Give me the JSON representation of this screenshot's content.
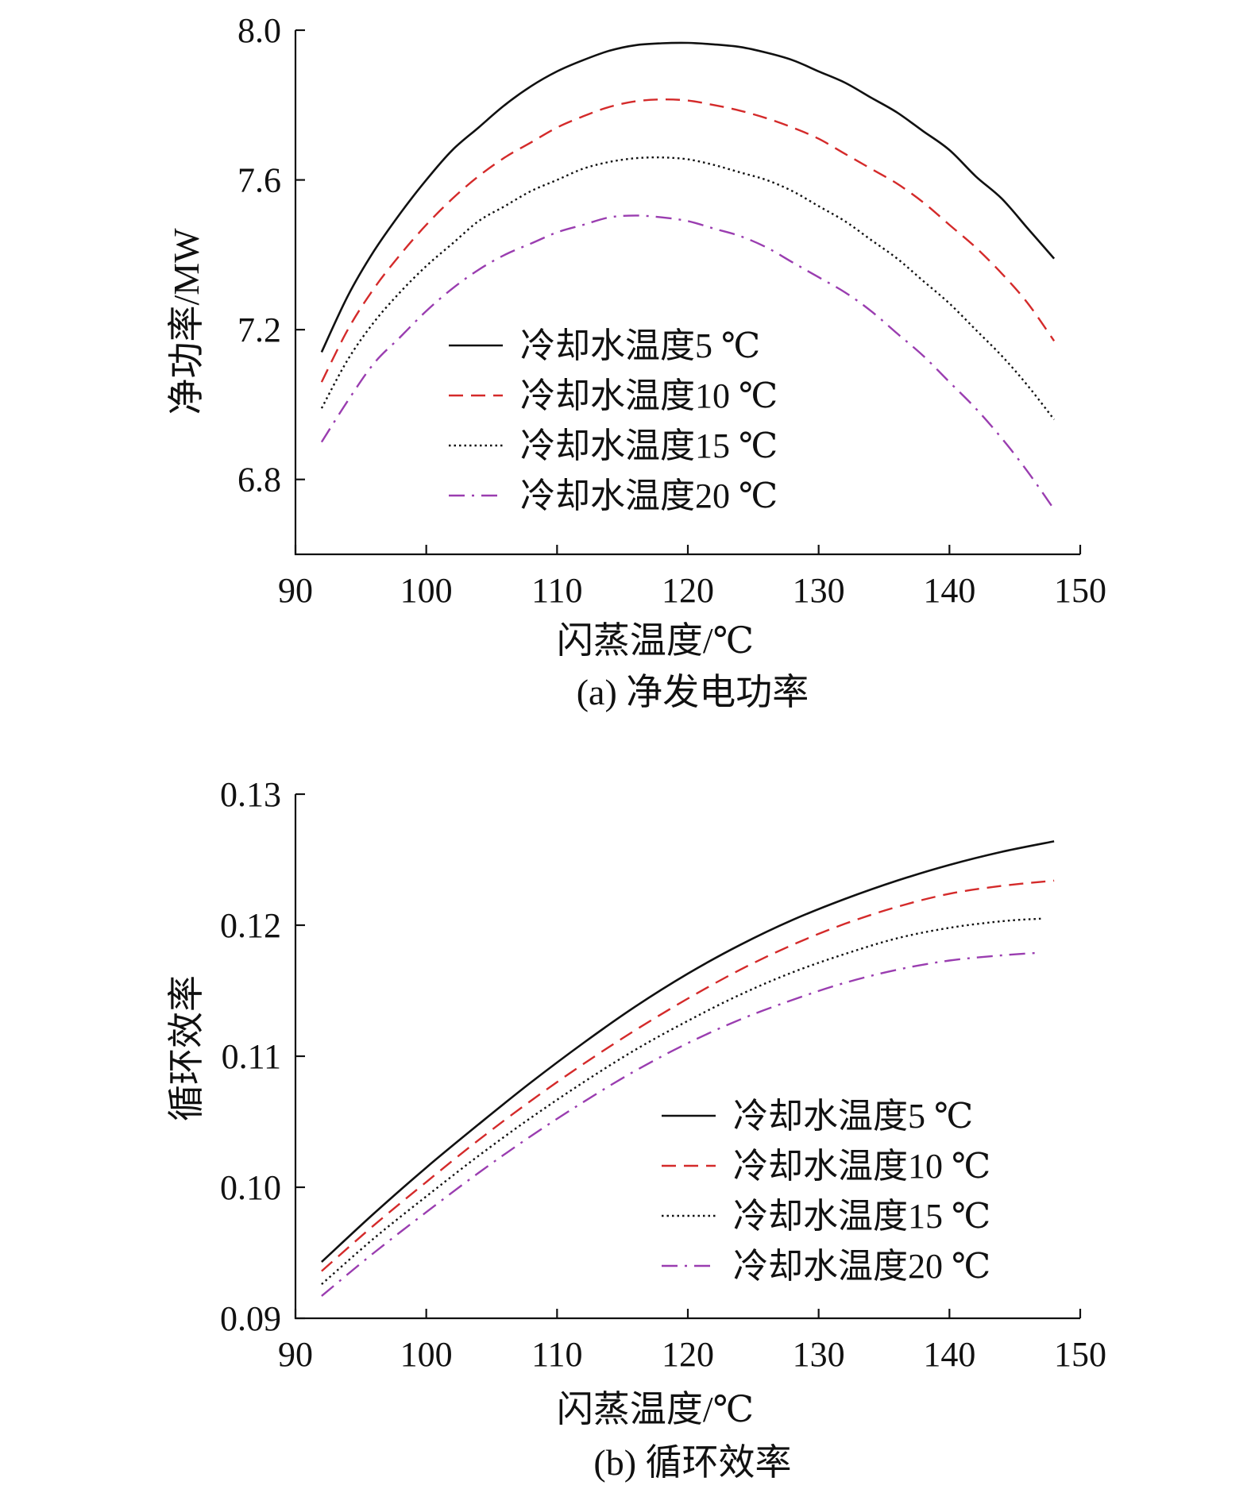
{
  "chart_data": [
    {
      "type": "line",
      "caption": "(a) 净发电功率",
      "xlabel": "闪蒸温度/℃",
      "ylabel": "净功率/MW",
      "xlim": [
        90,
        150
      ],
      "ylim": [
        6.6,
        8.0
      ],
      "xticks": [
        "90",
        "100",
        "110",
        "120",
        "130",
        "140",
        "150"
      ],
      "yticks": [
        {
          "value": 6.8,
          "label": "6.8"
        },
        {
          "value": 7.2,
          "label": "7.2"
        },
        {
          "value": 7.6,
          "label": "7.6"
        },
        {
          "value": 8.0,
          "label": "8.0"
        }
      ],
      "legend_position": "center",
      "series": [
        {
          "name": "冷却水温度5 ℃",
          "color": "#111111",
          "style": "solid",
          "x": [
            92,
            94,
            96,
            98,
            100,
            102,
            104,
            106,
            108,
            110,
            112,
            114,
            116,
            118,
            120,
            122,
            124,
            126,
            128,
            130,
            132,
            134,
            136,
            138,
            140,
            142,
            144,
            146,
            148
          ],
          "y": [
            7.14,
            7.29,
            7.41,
            7.51,
            7.6,
            7.68,
            7.74,
            7.8,
            7.85,
            7.89,
            7.92,
            7.945,
            7.96,
            7.965,
            7.966,
            7.962,
            7.955,
            7.94,
            7.92,
            7.89,
            7.86,
            7.82,
            7.78,
            7.73,
            7.68,
            7.61,
            7.55,
            7.47,
            7.39
          ]
        },
        {
          "name": "冷却水温度10 ℃",
          "color": "#d42a2a",
          "style": "dashed",
          "x": [
            92,
            94,
            96,
            98,
            100,
            102,
            104,
            106,
            108,
            110,
            112,
            114,
            116,
            118,
            120,
            122,
            124,
            126,
            128,
            130,
            132,
            134,
            136,
            138,
            140,
            142,
            144,
            146,
            148
          ],
          "y": [
            7.06,
            7.2,
            7.31,
            7.4,
            7.48,
            7.55,
            7.61,
            7.66,
            7.7,
            7.74,
            7.77,
            7.795,
            7.81,
            7.815,
            7.812,
            7.8,
            7.785,
            7.765,
            7.74,
            7.71,
            7.67,
            7.63,
            7.59,
            7.54,
            7.48,
            7.42,
            7.35,
            7.27,
            7.17
          ]
        },
        {
          "name": "冷却水温度15 ℃",
          "color": "#111111",
          "style": "dotted",
          "x": [
            92,
            94,
            96,
            98,
            100,
            102,
            104,
            106,
            108,
            110,
            112,
            114,
            116,
            118,
            120,
            122,
            124,
            126,
            128,
            130,
            132,
            134,
            136,
            138,
            140,
            142,
            144,
            146,
            148
          ],
          "y": [
            6.99,
            7.12,
            7.22,
            7.3,
            7.37,
            7.43,
            7.49,
            7.53,
            7.57,
            7.6,
            7.63,
            7.648,
            7.658,
            7.66,
            7.655,
            7.64,
            7.62,
            7.6,
            7.57,
            7.53,
            7.49,
            7.44,
            7.39,
            7.33,
            7.27,
            7.2,
            7.13,
            7.05,
            6.96
          ]
        },
        {
          "name": "冷却水温度20 ℃",
          "color": "#9a3db0",
          "style": "dashdot",
          "x": [
            92,
            94,
            96,
            98,
            100,
            102,
            104,
            106,
            108,
            110,
            112,
            114,
            116,
            118,
            120,
            122,
            124,
            126,
            128,
            130,
            132,
            134,
            136,
            138,
            140,
            142,
            144,
            146,
            148
          ],
          "y": [
            6.9,
            7.01,
            7.11,
            7.18,
            7.25,
            7.31,
            7.36,
            7.4,
            7.43,
            7.46,
            7.48,
            7.5,
            7.505,
            7.5,
            7.49,
            7.47,
            7.45,
            7.42,
            7.38,
            7.34,
            7.3,
            7.25,
            7.19,
            7.13,
            7.06,
            6.99,
            6.91,
            6.82,
            6.72
          ]
        }
      ]
    },
    {
      "type": "line",
      "caption": "(b) 循环效率",
      "xlabel": "闪蒸温度/℃",
      "ylabel": "循环效率",
      "xlim": [
        90,
        150
      ],
      "ylim": [
        0.09,
        0.13
      ],
      "xticks": [
        "90",
        "100",
        "110",
        "120",
        "130",
        "140",
        "150"
      ],
      "yticks": [
        {
          "value": 0.09,
          "label": "0.09"
        },
        {
          "value": 0.1,
          "label": "0.10"
        },
        {
          "value": 0.11,
          "label": "0.11"
        },
        {
          "value": 0.12,
          "label": "0.12"
        },
        {
          "value": 0.13,
          "label": "0.13"
        }
      ],
      "legend_position": "bottom-right",
      "series": [
        {
          "name": "冷却水温度5 ℃",
          "color": "#111111",
          "style": "solid",
          "x": [
            92,
            96,
            100,
            104,
            108,
            112,
            116,
            120,
            124,
            128,
            132,
            136,
            140,
            144,
            148
          ],
          "y": [
            0.0943,
            0.098,
            0.1015,
            0.1048,
            0.108,
            0.111,
            0.1138,
            0.1163,
            0.1185,
            0.1204,
            0.122,
            0.1234,
            0.1246,
            0.1256,
            0.1264
          ]
        },
        {
          "name": "冷却水温度10 ℃",
          "color": "#d42a2a",
          "style": "dashed",
          "x": [
            92,
            96,
            100,
            104,
            108,
            112,
            116,
            120,
            124,
            128,
            132,
            136,
            140,
            144,
            148
          ],
          "y": [
            0.0936,
            0.0971,
            0.1004,
            0.1036,
            0.1066,
            0.1094,
            0.112,
            0.1144,
            0.1166,
            0.1185,
            0.1201,
            0.1214,
            0.1224,
            0.123,
            0.1234
          ]
        },
        {
          "name": "冷却水温度15 ℃",
          "color": "#111111",
          "style": "dotted",
          "x": [
            92,
            96,
            100,
            104,
            108,
            112,
            116,
            120,
            124,
            128,
            132,
            136,
            140,
            144,
            147
          ],
          "y": [
            0.0926,
            0.0961,
            0.0993,
            0.1024,
            0.1053,
            0.108,
            0.1105,
            0.1127,
            0.1147,
            0.1164,
            0.1178,
            0.119,
            0.1198,
            0.1203,
            0.1205
          ]
        },
        {
          "name": "冷却水温度20 ℃",
          "color": "#9a3db0",
          "style": "dashdot",
          "x": [
            92,
            96,
            100,
            104,
            108,
            112,
            116,
            120,
            124,
            128,
            132,
            136,
            140,
            144,
            147
          ],
          "y": [
            0.0917,
            0.095,
            0.0981,
            0.1011,
            0.1039,
            0.1065,
            0.1089,
            0.111,
            0.1128,
            0.1143,
            0.1156,
            0.1166,
            0.1173,
            0.1177,
            0.1179
          ]
        }
      ]
    }
  ]
}
